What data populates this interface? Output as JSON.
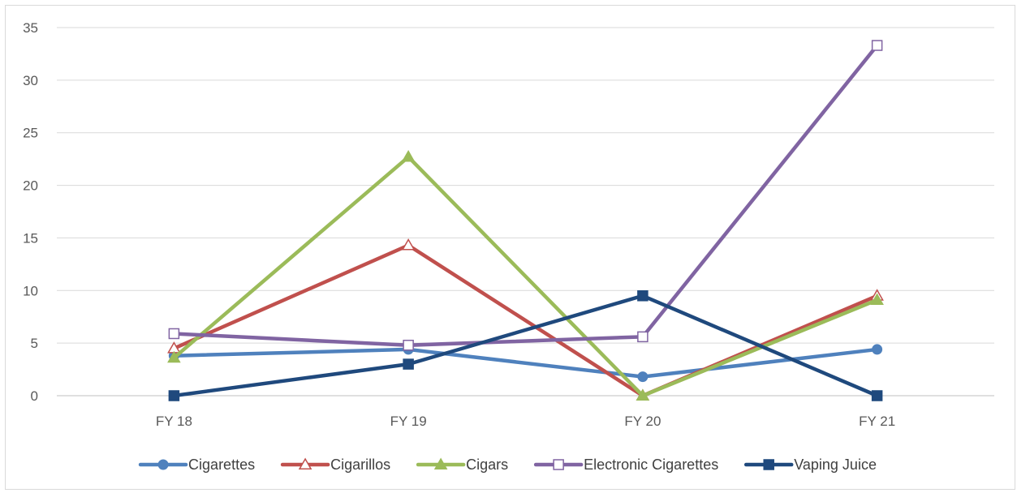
{
  "chart_data": {
    "type": "line",
    "title": "",
    "xlabel": "",
    "ylabel": "",
    "categories": [
      "FY 18",
      "FY 19",
      "FY 20",
      "FY 21"
    ],
    "ylim": [
      0,
      35
    ],
    "yticks": [
      0,
      5,
      10,
      15,
      20,
      25,
      30,
      35
    ],
    "grid": "horizontal",
    "legend_position": "bottom",
    "series": [
      {
        "name": "Cigarettes",
        "values": [
          3.8,
          4.4,
          1.8,
          4.4
        ],
        "color": "#4f81bd",
        "marker": "circle-filled"
      },
      {
        "name": "Cigarillos",
        "values": [
          4.5,
          14.3,
          0,
          9.5
        ],
        "color": "#c0504d",
        "marker": "triangle-open"
      },
      {
        "name": "Cigars",
        "values": [
          3.6,
          22.7,
          0,
          9.1
        ],
        "color": "#9bbb59",
        "marker": "triangle-filled"
      },
      {
        "name": "Electronic Cigarettes",
        "values": [
          5.9,
          4.8,
          5.6,
          33.3
        ],
        "color": "#8064a2",
        "marker": "square-open"
      },
      {
        "name": "Vaping Juice",
        "values": [
          0,
          3,
          9.5,
          0
        ],
        "color": "#1f497d",
        "marker": "square-filled"
      }
    ]
  }
}
